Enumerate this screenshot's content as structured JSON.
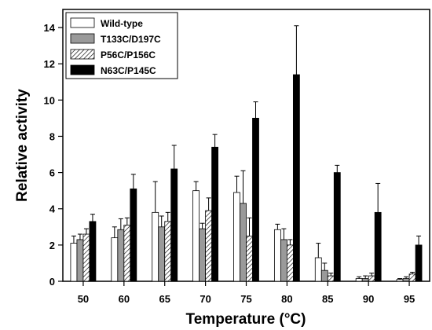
{
  "chart_data": {
    "type": "bar",
    "xlabel": "Temperature (°C)",
    "ylabel": "Relative activity",
    "ylim": [
      0,
      15
    ],
    "yticks": [
      0,
      2,
      4,
      6,
      8,
      10,
      12,
      14
    ],
    "legend_position": "top-left",
    "grid": false,
    "error_bars": true,
    "categories": [
      "50",
      "60",
      "65",
      "70",
      "75",
      "80",
      "85",
      "90",
      "95"
    ],
    "series": [
      {
        "name": "Wild-type",
        "fill": "white",
        "color": "#ffffff",
        "values": [
          2.1,
          2.4,
          3.8,
          5.0,
          4.9,
          2.85,
          1.3,
          0.15,
          0.1
        ],
        "errors": [
          0.4,
          0.6,
          1.7,
          0.5,
          0.9,
          0.3,
          0.8,
          0.1,
          0.05
        ]
      },
      {
        "name": "T133C/D197C",
        "fill": "gray",
        "color": "#9a9a9a",
        "values": [
          2.3,
          2.85,
          3.0,
          2.9,
          4.3,
          2.3,
          0.6,
          0.15,
          0.15
        ],
        "errors": [
          0.3,
          0.6,
          0.6,
          0.3,
          1.8,
          0.6,
          0.4,
          0.15,
          0.1
        ]
      },
      {
        "name": "P56C/P156C",
        "fill": "hatch",
        "color": "#ffffff",
        "values": [
          2.6,
          3.1,
          3.3,
          3.9,
          2.5,
          2.0,
          0.3,
          0.3,
          0.4
        ],
        "errors": [
          0.3,
          0.4,
          0.5,
          0.7,
          1.0,
          0.3,
          0.15,
          0.15,
          0.1
        ]
      },
      {
        "name": "N63C/P145C",
        "fill": "black",
        "color": "#000000",
        "values": [
          3.3,
          5.1,
          6.2,
          7.4,
          9.0,
          11.4,
          6.0,
          3.8,
          2.0
        ],
        "errors": [
          0.4,
          0.8,
          1.3,
          0.7,
          0.9,
          2.7,
          0.4,
          1.6,
          0.5
        ]
      }
    ]
  }
}
